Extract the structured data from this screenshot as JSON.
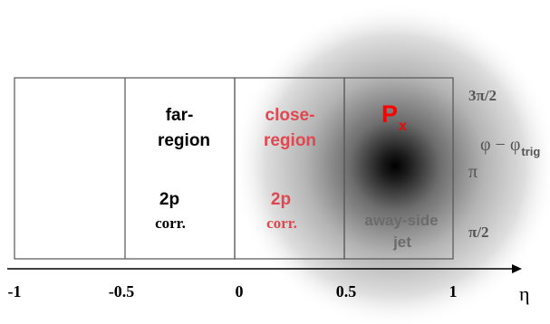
{
  "axis": {
    "label": "η",
    "ticks": [
      "-1",
      "-0.5",
      "0",
      "0.5",
      "1"
    ]
  },
  "regions": {
    "far": {
      "title_line1": "far-",
      "title_line2": "region",
      "corr_line1": "2p",
      "corr_line2": "corr."
    },
    "close": {
      "title_line1": "close-",
      "title_line2": "region",
      "corr_line1": "2p",
      "corr_line2": "corr."
    },
    "away": {
      "label_line1": "away-side",
      "label_line2": "jet",
      "trigger_P": "P",
      "trigger_sub": "x"
    }
  },
  "phi_axis": {
    "title_main": "φ − φ",
    "title_sub": "trig",
    "ticks": [
      "3π/2",
      "π",
      "π/2"
    ]
  },
  "colors": {
    "far_text": "#000000",
    "close_text": "#e0474f",
    "trigger_text": "#ff0000",
    "away_text": "#6b6b6b",
    "box_stroke": "#555555"
  }
}
